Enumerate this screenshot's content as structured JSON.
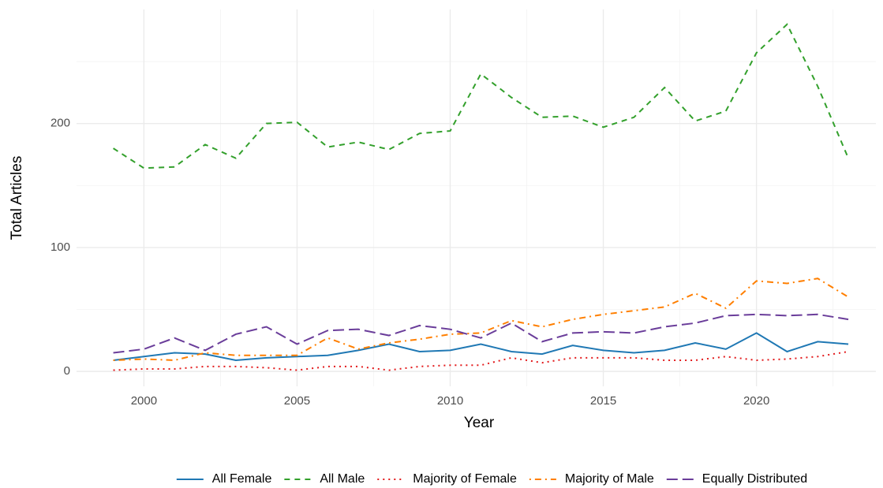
{
  "chart_data": {
    "type": "line",
    "x_label": "Year",
    "y_label": "Total Articles",
    "x": [
      1999,
      2000,
      2001,
      2002,
      2003,
      2004,
      2005,
      2006,
      2007,
      2008,
      2009,
      2010,
      2011,
      2012,
      2013,
      2014,
      2015,
      2016,
      2017,
      2018,
      2019,
      2020,
      2021,
      2022,
      2023
    ],
    "series": [
      {
        "name": "All Female",
        "color": "#1f78b4",
        "dash": "solid",
        "values": [
          9,
          12,
          15,
          14,
          9,
          11,
          12,
          13,
          17,
          22,
          16,
          17,
          22,
          16,
          14,
          21,
          17,
          15,
          17,
          23,
          18,
          31,
          16,
          24,
          22
        ]
      },
      {
        "name": "All Male",
        "color": "#33a02c",
        "dash": "dashed",
        "values": [
          180,
          164,
          165,
          183,
          172,
          200,
          201,
          181,
          185,
          179,
          192,
          194,
          240,
          221,
          205,
          206,
          197,
          205,
          229,
          202,
          210,
          257,
          280,
          230,
          172
        ]
      },
      {
        "name": "Majority of Female",
        "color": "#e31a1c",
        "dash": "dotted",
        "values": [
          1,
          2,
          2,
          4,
          4,
          3,
          1,
          4,
          4,
          1,
          4,
          5,
          5,
          11,
          7,
          11,
          11,
          11,
          9,
          9,
          12,
          9,
          10,
          12,
          16
        ]
      },
      {
        "name": "Majority of Male",
        "color": "#ff7f00",
        "dash": "dotdash",
        "values": [
          9,
          10,
          9,
          15,
          13,
          13,
          13,
          27,
          18,
          23,
          26,
          30,
          31,
          41,
          36,
          42,
          46,
          49,
          52,
          63,
          51,
          73,
          71,
          75,
          60
        ]
      },
      {
        "name": "Equally Distributed",
        "color": "#6a3d9a",
        "dash": "longdash",
        "values": [
          15,
          18,
          27,
          17,
          30,
          36,
          22,
          33,
          34,
          29,
          37,
          34,
          27,
          39,
          24,
          31,
          32,
          31,
          36,
          39,
          45,
          46,
          45,
          46,
          42
        ]
      }
    ],
    "xlim": [
      1997.8,
      2023.9
    ],
    "xticks": [
      2000,
      2005,
      2010,
      2015,
      2020
    ],
    "ylim": [
      -12,
      292
    ],
    "yticks": [
      0,
      100,
      200
    ],
    "grid": true,
    "legend": "bottom"
  }
}
